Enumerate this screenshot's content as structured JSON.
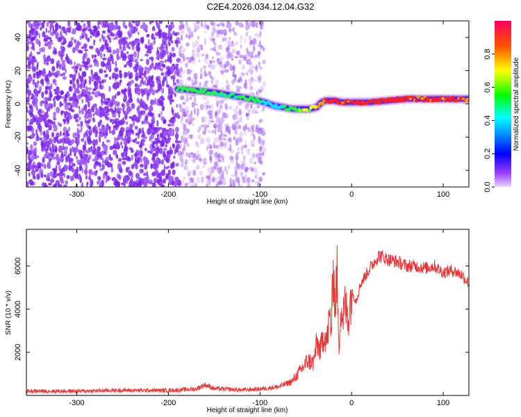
{
  "title": "C2E4.2026.034.12.04.G32",
  "chart_data": [
    {
      "type": "heatmap",
      "name": "spectrogram",
      "xlabel": "Height of straight line (km)",
      "ylabel": "Frequency (Hz)",
      "xlim": [
        -355,
        128
      ],
      "ylim": [
        -50,
        50
      ],
      "xticks": [
        -300,
        -200,
        -100,
        0,
        100
      ],
      "yticks": [
        -40,
        -20,
        0,
        20,
        40
      ],
      "colorbar": {
        "label": "Normalized spectral amplitude",
        "range": [
          0,
          1
        ],
        "ticks": [
          0.0,
          0.2,
          0.4,
          0.6,
          0.8
        ],
        "tick_labels": [
          "0.0",
          "0.2",
          "0.4",
          "0.6",
          "0.8"
        ]
      },
      "signal_track": {
        "x": [
          -190,
          -170,
          -150,
          -130,
          -110,
          -95,
          -85,
          -75,
          -65,
          -55,
          -45,
          -38,
          -33,
          -28,
          -20,
          -10,
          0,
          20,
          40,
          60,
          80,
          100,
          128
        ],
        "frequency": [
          9,
          8,
          7,
          5,
          3,
          1,
          -1,
          -2,
          -3,
          -3,
          -3,
          -2,
          1,
          2,
          2,
          1,
          1,
          1,
          2,
          3,
          3,
          3,
          3
        ],
        "amplitude": [
          0.45,
          0.5,
          0.45,
          0.45,
          0.5,
          0.35,
          0.35,
          0.4,
          0.45,
          0.5,
          0.6,
          0.7,
          0.8,
          0.9,
          0.9,
          0.88,
          0.9,
          0.95,
          0.95,
          0.9,
          0.85,
          0.9,
          0.85
        ]
      },
      "noise_region_x": [
        -355,
        -95
      ]
    },
    {
      "type": "line",
      "name": "snr",
      "xlabel": "Height of straight line (km)",
      "ylabel": "SNR (10 * v/v)",
      "xlim": [
        -355,
        128
      ],
      "ylim": [
        0,
        7700
      ],
      "xticks": [
        -300,
        -200,
        -100,
        0,
        100
      ],
      "yticks": [
        2000,
        4000,
        6000
      ],
      "color": "#ee3333",
      "x": [
        -355,
        -300,
        -250,
        -200,
        -170,
        -160,
        -150,
        -120,
        -100,
        -80,
        -65,
        -55,
        -48,
        -42,
        -38,
        -34,
        -30,
        -27,
        -24,
        -22,
        -20,
        -18,
        -16,
        -14,
        -12,
        -10,
        -7,
        -4,
        0,
        5,
        10,
        20,
        30,
        40,
        50,
        60,
        70,
        80,
        90,
        100,
        110,
        120,
        128
      ],
      "values": [
        200,
        200,
        240,
        230,
        300,
        500,
        320,
        250,
        300,
        400,
        650,
        1200,
        1600,
        1500,
        2400,
        2100,
        2900,
        2500,
        3700,
        3000,
        6200,
        4000,
        5800,
        2000,
        4300,
        3600,
        4200,
        3500,
        4800,
        4400,
        5200,
        5900,
        6500,
        6300,
        6200,
        6000,
        6000,
        5900,
        6000,
        5700,
        5800,
        5600,
        5200
      ]
    }
  ]
}
